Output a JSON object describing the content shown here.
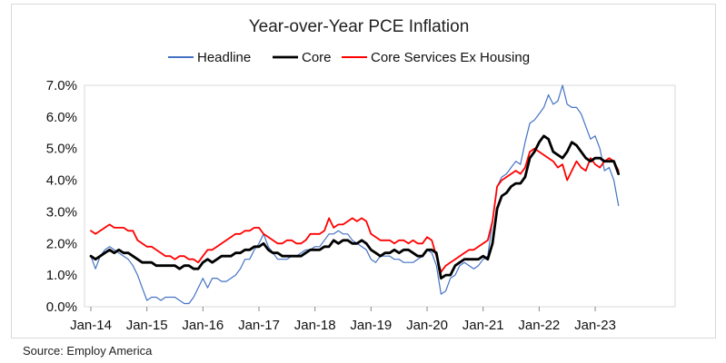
{
  "source": "Source: Employ America",
  "chart_data": {
    "type": "line",
    "title": "Year-over-Year PCE Inflation",
    "xlabel": "",
    "ylabel": "",
    "ylim": [
      0,
      7
    ],
    "ytick_labels": [
      "0.0%",
      "1.0%",
      "2.0%",
      "3.0%",
      "4.0%",
      "5.0%",
      "6.0%",
      "7.0%"
    ],
    "xtick_labels": [
      "Jan-14",
      "Jan-15",
      "Jan-16",
      "Jan-17",
      "Jan-18",
      "Jan-19",
      "Jan-20",
      "Jan-21",
      "Jan-22",
      "Jan-23"
    ],
    "x_start": "Jan-14",
    "x_frequency": "monthly",
    "legend_position": "top-center",
    "grid": false,
    "series": [
      {
        "name": "Headline",
        "color": "#4472C4",
        "width": 1.2,
        "values": [
          1.6,
          1.2,
          1.6,
          1.8,
          1.9,
          1.8,
          1.7,
          1.6,
          1.5,
          1.3,
          1.0,
          0.6,
          0.2,
          0.3,
          0.3,
          0.2,
          0.3,
          0.3,
          0.3,
          0.2,
          0.1,
          0.1,
          0.3,
          0.6,
          0.9,
          0.6,
          0.9,
          0.9,
          0.8,
          0.8,
          0.9,
          1.0,
          1.2,
          1.5,
          1.5,
          1.8,
          2.0,
          2.3,
          1.9,
          1.7,
          1.5,
          1.5,
          1.5,
          1.6,
          1.6,
          1.7,
          1.8,
          1.8,
          1.9,
          1.9,
          2.1,
          2.3,
          2.3,
          2.4,
          2.3,
          2.3,
          2.1,
          2.0,
          1.9,
          1.8,
          1.5,
          1.4,
          1.6,
          1.6,
          1.6,
          1.5,
          1.5,
          1.4,
          1.4,
          1.4,
          1.5,
          1.6,
          1.8,
          1.7,
          1.3,
          0.4,
          0.5,
          0.9,
          1.0,
          1.3,
          1.4,
          1.3,
          1.2,
          1.3,
          1.5,
          1.6,
          2.7,
          3.8,
          4.1,
          4.2,
          4.4,
          4.6,
          4.5,
          5.2,
          5.8,
          5.9,
          6.1,
          6.3,
          6.7,
          6.4,
          6.5,
          7.0,
          6.4,
          6.3,
          6.3,
          6.1,
          5.7,
          5.3,
          5.4,
          5.0,
          4.3,
          4.4,
          4.0,
          3.2
        ]
      },
      {
        "name": "Core",
        "color": "#000000",
        "width": 2.8,
        "values": [
          1.6,
          1.5,
          1.6,
          1.7,
          1.8,
          1.7,
          1.8,
          1.7,
          1.7,
          1.6,
          1.5,
          1.4,
          1.4,
          1.4,
          1.3,
          1.3,
          1.3,
          1.3,
          1.3,
          1.2,
          1.3,
          1.3,
          1.2,
          1.2,
          1.4,
          1.5,
          1.4,
          1.5,
          1.6,
          1.6,
          1.6,
          1.7,
          1.7,
          1.8,
          1.8,
          1.9,
          1.9,
          2.0,
          1.8,
          1.7,
          1.7,
          1.6,
          1.6,
          1.6,
          1.6,
          1.6,
          1.7,
          1.8,
          1.8,
          1.8,
          1.9,
          1.9,
          2.1,
          2.0,
          2.1,
          2.1,
          2.0,
          2.0,
          2.1,
          2.0,
          1.8,
          1.7,
          1.6,
          1.7,
          1.7,
          1.8,
          1.7,
          1.8,
          1.8,
          1.7,
          1.6,
          1.6,
          1.8,
          1.8,
          1.7,
          0.9,
          1.0,
          1.0,
          1.3,
          1.4,
          1.5,
          1.5,
          1.5,
          1.5,
          1.6,
          1.5,
          2.0,
          3.1,
          3.5,
          3.6,
          3.8,
          3.9,
          3.9,
          4.1,
          4.7,
          4.9,
          5.2,
          5.4,
          5.3,
          4.9,
          4.8,
          4.7,
          4.9,
          5.2,
          5.1,
          4.9,
          4.7,
          4.6,
          4.7,
          4.7,
          4.6,
          4.6,
          4.6,
          4.2
        ]
      },
      {
        "name": "Core Services Ex Housing",
        "color": "#FF0000",
        "width": 1.8,
        "values": [
          2.4,
          2.3,
          2.4,
          2.5,
          2.6,
          2.5,
          2.5,
          2.5,
          2.4,
          2.4,
          2.1,
          2.0,
          1.9,
          1.9,
          1.8,
          1.7,
          1.6,
          1.6,
          1.5,
          1.6,
          1.6,
          1.5,
          1.5,
          1.4,
          1.6,
          1.8,
          1.8,
          1.9,
          2.0,
          2.1,
          2.2,
          2.3,
          2.3,
          2.4,
          2.4,
          2.5,
          2.5,
          2.3,
          2.2,
          2.1,
          2.0,
          2.0,
          2.1,
          2.1,
          2.0,
          2.0,
          2.1,
          2.3,
          2.3,
          2.3,
          2.4,
          2.8,
          2.5,
          2.6,
          2.6,
          2.7,
          2.8,
          2.7,
          2.8,
          2.7,
          2.3,
          2.2,
          2.1,
          2.1,
          2.1,
          2.0,
          2.1,
          2.1,
          2.0,
          2.1,
          2.0,
          2.0,
          2.2,
          2.1,
          1.6,
          1.1,
          1.3,
          1.4,
          1.5,
          1.6,
          1.7,
          1.8,
          1.8,
          1.9,
          2.0,
          2.1,
          2.7,
          3.8,
          4.0,
          4.1,
          4.2,
          4.3,
          4.2,
          4.4,
          4.9,
          5.0,
          4.9,
          4.8,
          4.7,
          4.6,
          4.4,
          4.5,
          4.0,
          4.3,
          4.6,
          4.4,
          4.3,
          4.7,
          4.5,
          4.4,
          4.6,
          4.7,
          4.6,
          4.3
        ]
      }
    ]
  }
}
